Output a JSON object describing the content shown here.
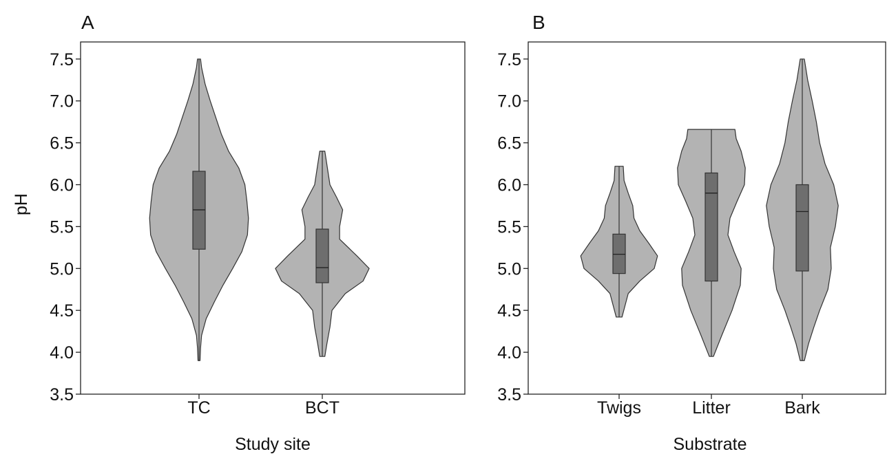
{
  "chart_data": [
    {
      "type": "violin",
      "panel": "A",
      "title": "",
      "xlabel": "Study site",
      "ylabel": "pH",
      "ylim": [
        3.5,
        7.7
      ],
      "yticks": [
        "3.5",
        "4.0",
        "4.5",
        "5.0",
        "5.5",
        "6.0",
        "6.5",
        "7.0",
        "7.5"
      ],
      "categories": [
        "TC",
        "BCT"
      ],
      "fill_color": "#b3b3b3",
      "box_color": "#6e6e6e",
      "series": [
        {
          "category": "TC",
          "min": 3.9,
          "q1": 5.23,
          "median": 5.7,
          "q3": 6.16,
          "max": 7.5,
          "density": [
            [
              3.9,
              0.02
            ],
            [
              4.05,
              0.03
            ],
            [
              4.2,
              0.05
            ],
            [
              4.4,
              0.14
            ],
            [
              4.6,
              0.3
            ],
            [
              4.8,
              0.47
            ],
            [
              5.0,
              0.66
            ],
            [
              5.2,
              0.84
            ],
            [
              5.4,
              0.95
            ],
            [
              5.6,
              0.97
            ],
            [
              5.8,
              0.94
            ],
            [
              6.0,
              0.9
            ],
            [
              6.2,
              0.78
            ],
            [
              6.4,
              0.58
            ],
            [
              6.6,
              0.44
            ],
            [
              6.8,
              0.33
            ],
            [
              7.0,
              0.22
            ],
            [
              7.2,
              0.12
            ],
            [
              7.4,
              0.05
            ],
            [
              7.5,
              0.03
            ]
          ]
        },
        {
          "category": "BCT",
          "min": 3.95,
          "q1": 4.83,
          "median": 5.01,
          "q3": 5.47,
          "max": 6.4,
          "density": [
            [
              3.95,
              0.05
            ],
            [
              4.1,
              0.09
            ],
            [
              4.3,
              0.15
            ],
            [
              4.5,
              0.19
            ],
            [
              4.7,
              0.45
            ],
            [
              4.85,
              0.8
            ],
            [
              5.0,
              0.92
            ],
            [
              5.15,
              0.68
            ],
            [
              5.35,
              0.34
            ],
            [
              5.5,
              0.34
            ],
            [
              5.7,
              0.4
            ],
            [
              5.85,
              0.28
            ],
            [
              6.0,
              0.15
            ],
            [
              6.2,
              0.1
            ],
            [
              6.4,
              0.05
            ]
          ]
        }
      ]
    },
    {
      "type": "violin",
      "panel": "B",
      "title": "",
      "xlabel": "Substrate",
      "ylabel": "",
      "ylim": [
        3.5,
        7.7
      ],
      "yticks": [
        "3.5",
        "4.0",
        "4.5",
        "5.0",
        "5.5",
        "6.0",
        "6.5",
        "7.0",
        "7.5"
      ],
      "categories": [
        "Twigs",
        "Litter",
        "Bark"
      ],
      "fill_color": "#b3b3b3",
      "box_color": "#6e6e6e",
      "series": [
        {
          "category": "Twigs",
          "min": 4.42,
          "q1": 4.94,
          "median": 5.17,
          "q3": 5.41,
          "max": 6.22,
          "density": [
            [
              4.42,
              0.07
            ],
            [
              4.55,
              0.14
            ],
            [
              4.7,
              0.22
            ],
            [
              4.85,
              0.5
            ],
            [
              5.0,
              0.85
            ],
            [
              5.15,
              0.93
            ],
            [
              5.3,
              0.72
            ],
            [
              5.45,
              0.5
            ],
            [
              5.6,
              0.36
            ],
            [
              5.75,
              0.33
            ],
            [
              5.9,
              0.22
            ],
            [
              6.05,
              0.12
            ],
            [
              6.22,
              0.1
            ]
          ]
        },
        {
          "category": "Litter",
          "min": 3.95,
          "q1": 4.85,
          "median": 5.9,
          "q3": 6.14,
          "max": 6.66,
          "density": [
            [
              3.95,
              0.05
            ],
            [
              4.2,
              0.25
            ],
            [
              4.5,
              0.5
            ],
            [
              4.8,
              0.7
            ],
            [
              5.0,
              0.72
            ],
            [
              5.2,
              0.55
            ],
            [
              5.4,
              0.4
            ],
            [
              5.6,
              0.45
            ],
            [
              5.8,
              0.62
            ],
            [
              6.0,
              0.8
            ],
            [
              6.2,
              0.82
            ],
            [
              6.4,
              0.72
            ],
            [
              6.55,
              0.6
            ],
            [
              6.66,
              0.57
            ]
          ]
        },
        {
          "category": "Bark",
          "min": 3.9,
          "q1": 4.97,
          "median": 5.68,
          "q3": 6.0,
          "max": 7.5,
          "density": [
            [
              3.9,
              0.05
            ],
            [
              4.1,
              0.15
            ],
            [
              4.3,
              0.28
            ],
            [
              4.5,
              0.42
            ],
            [
              4.75,
              0.62
            ],
            [
              5.0,
              0.7
            ],
            [
              5.25,
              0.68
            ],
            [
              5.5,
              0.8
            ],
            [
              5.75,
              0.87
            ],
            [
              6.0,
              0.76
            ],
            [
              6.25,
              0.55
            ],
            [
              6.5,
              0.42
            ],
            [
              6.75,
              0.34
            ],
            [
              7.0,
              0.24
            ],
            [
              7.25,
              0.13
            ],
            [
              7.5,
              0.05
            ]
          ]
        }
      ]
    }
  ]
}
